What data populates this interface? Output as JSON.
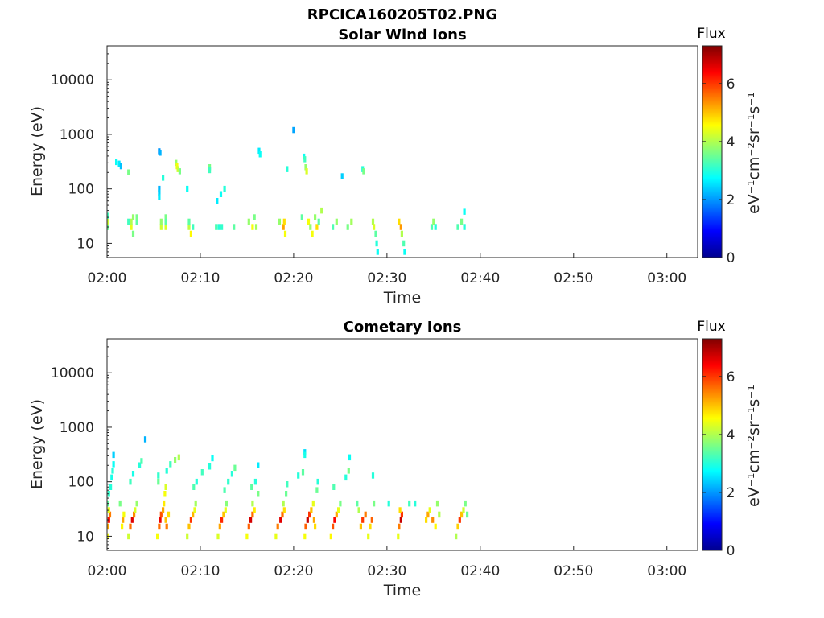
{
  "figure_title": "RPCICA160205T02.PNG",
  "colormap": [
    "#00008f",
    "#0000ff",
    "#0080ff",
    "#00ffff",
    "#80ff80",
    "#ffff00",
    "#ff8000",
    "#ff0000",
    "#800000"
  ],
  "chart_data": [
    {
      "type": "heatmap",
      "title": "Solar Wind Ions",
      "xlabel": "Time",
      "ylabel": "Energy (eV)",
      "x_ticks": [
        "02:00",
        "02:10",
        "02:20",
        "02:30",
        "02:40",
        "02:50",
        "03:00"
      ],
      "x_tick_minutes": [
        0,
        10,
        20,
        30,
        40,
        50,
        60
      ],
      "xlim_minutes": [
        0,
        63.3
      ],
      "y_scale": "log",
      "ylim": [
        5.5,
        42000
      ],
      "y_ticks": [
        "10",
        "100",
        "1000",
        "10000"
      ],
      "y_tick_values": [
        10,
        100,
        1000,
        10000
      ],
      "colorbar": {
        "label": "Flux",
        "units": "eV⁻¹cm⁻²sr⁻¹s⁻¹",
        "range": [
          0,
          7.3
        ],
        "ticks": [
          "0",
          "2",
          "4",
          "6"
        ],
        "tick_values": [
          0,
          2,
          4,
          6
        ]
      },
      "cells": [
        [
          0.1,
          20,
          3.5
        ],
        [
          0.1,
          25,
          4.2
        ],
        [
          0.1,
          32,
          3.2
        ],
        [
          1.0,
          310,
          2.8
        ],
        [
          1.3,
          290,
          2.6
        ],
        [
          1.5,
          260,
          2.3
        ],
        [
          2.3,
          200,
          3.6
        ],
        [
          2.3,
          25,
          3.2
        ],
        [
          2.6,
          20,
          4.4
        ],
        [
          2.6,
          25,
          4.0
        ],
        [
          2.8,
          15,
          3.6
        ],
        [
          2.8,
          30,
          3.8
        ],
        [
          3.2,
          25,
          3.4
        ],
        [
          3.2,
          30,
          3.6
        ],
        [
          5.6,
          490,
          2.0
        ],
        [
          5.7,
          460,
          2.2
        ],
        [
          5.6,
          100,
          2.2
        ],
        [
          5.6,
          85,
          2.4
        ],
        [
          5.6,
          70,
          2.6
        ],
        [
          5.8,
          20,
          4.2
        ],
        [
          5.8,
          25,
          3.8
        ],
        [
          6.0,
          160,
          3.0
        ],
        [
          6.3,
          30,
          3.6
        ],
        [
          6.3,
          20,
          4.3
        ],
        [
          6.3,
          25,
          3.4
        ],
        [
          7.4,
          300,
          3.8
        ],
        [
          7.5,
          260,
          4.5
        ],
        [
          7.6,
          230,
          4.2
        ],
        [
          7.8,
          210,
          3.6
        ],
        [
          8.6,
          100,
          2.8
        ],
        [
          8.8,
          20,
          4.1
        ],
        [
          8.8,
          25,
          3.4
        ],
        [
          9.0,
          15,
          4.6
        ],
        [
          9.2,
          20,
          3.2
        ],
        [
          11.0,
          250,
          3.6
        ],
        [
          11.0,
          220,
          3.2
        ],
        [
          11.8,
          60,
          2.6
        ],
        [
          12.2,
          80,
          2.8
        ],
        [
          12.6,
          100,
          3.0
        ],
        [
          11.7,
          20,
          3.3
        ],
        [
          12.0,
          20,
          3.0
        ],
        [
          12.3,
          20,
          3.1
        ],
        [
          13.6,
          20,
          3.4
        ],
        [
          15.2,
          25,
          3.8
        ],
        [
          15.6,
          20,
          4.5
        ],
        [
          15.8,
          30,
          3.6
        ],
        [
          16.0,
          20,
          3.9
        ],
        [
          16.3,
          500,
          2.6
        ],
        [
          16.4,
          430,
          2.8
        ],
        [
          18.5,
          25,
          3.8
        ],
        [
          18.9,
          20,
          5.2
        ],
        [
          19.0,
          25,
          4.8
        ],
        [
          19.1,
          15,
          4.5
        ],
        [
          19.3,
          230,
          3.0
        ],
        [
          20.0,
          1200,
          2.1
        ],
        [
          20.9,
          30,
          3.4
        ],
        [
          21.1,
          390,
          2.8
        ],
        [
          21.2,
          350,
          3.2
        ],
        [
          21.3,
          250,
          3.8
        ],
        [
          21.4,
          210,
          4.3
        ],
        [
          21.6,
          25,
          4.5
        ],
        [
          21.8,
          20,
          3.8
        ],
        [
          22.0,
          15,
          4.5
        ],
        [
          22.3,
          30,
          3.8
        ],
        [
          22.5,
          20,
          4.8
        ],
        [
          22.7,
          25,
          3.4
        ],
        [
          23.0,
          40,
          4.0
        ],
        [
          24.2,
          20,
          3.3
        ],
        [
          24.6,
          25,
          3.8
        ],
        [
          25.2,
          170,
          2.4
        ],
        [
          25.8,
          20,
          3.6
        ],
        [
          26.2,
          25,
          3.9
        ],
        [
          27.4,
          230,
          3.0
        ],
        [
          27.5,
          210,
          3.6
        ],
        [
          28.5,
          25,
          4.0
        ],
        [
          28.6,
          20,
          4.3
        ],
        [
          28.8,
          15,
          3.4
        ],
        [
          28.9,
          10,
          3.0
        ],
        [
          29.0,
          7,
          2.8
        ],
        [
          31.3,
          25,
          4.8
        ],
        [
          31.5,
          20,
          5.3
        ],
        [
          31.6,
          15,
          4.0
        ],
        [
          31.8,
          10,
          3.3
        ],
        [
          31.9,
          7,
          2.8
        ],
        [
          34.8,
          20,
          3.3
        ],
        [
          35.0,
          25,
          3.8
        ],
        [
          35.2,
          20,
          3.0
        ],
        [
          37.6,
          20,
          3.3
        ],
        [
          38.0,
          25,
          3.6
        ],
        [
          38.3,
          20,
          3.0
        ],
        [
          38.3,
          38,
          2.8
        ]
      ]
    },
    {
      "type": "heatmap",
      "title": "Cometary Ions",
      "xlabel": "Time",
      "ylabel": "Energy (eV)",
      "x_ticks": [
        "02:00",
        "02:10",
        "02:20",
        "02:30",
        "02:40",
        "02:50",
        "03:00"
      ],
      "x_tick_minutes": [
        0,
        10,
        20,
        30,
        40,
        50,
        60
      ],
      "xlim_minutes": [
        0,
        63.3
      ],
      "y_scale": "log",
      "ylim": [
        5.5,
        42000
      ],
      "y_ticks": [
        "10",
        "100",
        "1000",
        "10000"
      ],
      "y_tick_values": [
        10,
        100,
        1000,
        10000
      ],
      "colorbar": {
        "label": "Flux",
        "units": "eV⁻¹cm⁻²sr⁻¹s⁻¹",
        "range": [
          0,
          7.3
        ],
        "ticks": [
          "0",
          "2",
          "4",
          "6"
        ],
        "tick_values": [
          0,
          2,
          4,
          6
        ]
      },
      "cells": [
        [
          0.1,
          10,
          4.5
        ],
        [
          0.1,
          15,
          5.2
        ],
        [
          0.2,
          20,
          6.3
        ],
        [
          0.3,
          25,
          5.5
        ],
        [
          0.2,
          30,
          4.4
        ],
        [
          0.1,
          40,
          3.4
        ],
        [
          0.2,
          60,
          3.1
        ],
        [
          0.4,
          80,
          3.0
        ],
        [
          0.5,
          120,
          2.9
        ],
        [
          0.6,
          160,
          3.0
        ],
        [
          0.7,
          210,
          2.8
        ],
        [
          0.7,
          310,
          2.4
        ],
        [
          1.4,
          40,
          3.6
        ],
        [
          1.6,
          15,
          4.6
        ],
        [
          1.7,
          20,
          5.2
        ],
        [
          1.8,
          25,
          4.5
        ],
        [
          2.3,
          10,
          4.2
        ],
        [
          2.5,
          15,
          5.6
        ],
        [
          2.7,
          20,
          6.6
        ],
        [
          2.9,
          25,
          5.4
        ],
        [
          3.0,
          30,
          4.3
        ],
        [
          3.2,
          40,
          3.8
        ],
        [
          2.5,
          100,
          3.2
        ],
        [
          2.8,
          140,
          2.9
        ],
        [
          3.5,
          200,
          3.0
        ],
        [
          3.7,
          240,
          3.3
        ],
        [
          4.1,
          600,
          2.2
        ],
        [
          5.4,
          10,
          4.5
        ],
        [
          5.6,
          15,
          5.6
        ],
        [
          5.7,
          20,
          6.5
        ],
        [
          5.8,
          25,
          5.8
        ],
        [
          6.0,
          30,
          5.2
        ],
        [
          6.1,
          40,
          4.7
        ],
        [
          6.2,
          60,
          4.5
        ],
        [
          6.3,
          80,
          4.3
        ],
        [
          5.5,
          100,
          3.5
        ],
        [
          5.5,
          130,
          3.1
        ],
        [
          6.4,
          160,
          3.0
        ],
        [
          6.8,
          210,
          3.2
        ],
        [
          7.3,
          250,
          3.8
        ],
        [
          7.7,
          280,
          4.0
        ],
        [
          6.3,
          20,
          5.0
        ],
        [
          6.4,
          15,
          5.5
        ],
        [
          6.6,
          25,
          4.8
        ],
        [
          8.6,
          10,
          4.2
        ],
        [
          8.8,
          15,
          5.0
        ],
        [
          9.0,
          20,
          6.0
        ],
        [
          9.2,
          25,
          5.1
        ],
        [
          9.4,
          30,
          4.4
        ],
        [
          9.5,
          40,
          3.9
        ],
        [
          9.3,
          80,
          3.3
        ],
        [
          9.6,
          100,
          3.0
        ],
        [
          10.2,
          150,
          3.2
        ],
        [
          11.0,
          190,
          3.0
        ],
        [
          11.3,
          270,
          2.8
        ],
        [
          11.9,
          10,
          4.3
        ],
        [
          12.1,
          15,
          5.2
        ],
        [
          12.3,
          20,
          6.1
        ],
        [
          12.5,
          25,
          5.0
        ],
        [
          12.7,
          30,
          4.4
        ],
        [
          12.8,
          40,
          3.7
        ],
        [
          12.6,
          70,
          3.3
        ],
        [
          13.0,
          100,
          3.1
        ],
        [
          13.4,
          140,
          3.0
        ],
        [
          13.7,
          180,
          3.5
        ],
        [
          15.0,
          10,
          4.5
        ],
        [
          15.2,
          15,
          5.7
        ],
        [
          15.4,
          20,
          6.7
        ],
        [
          15.6,
          25,
          5.6
        ],
        [
          15.8,
          30,
          4.7
        ],
        [
          15.6,
          40,
          4.0
        ],
        [
          15.5,
          80,
          3.4
        ],
        [
          15.9,
          100,
          3.0
        ],
        [
          16.2,
          60,
          3.6
        ],
        [
          16.2,
          200,
          2.6
        ],
        [
          18.1,
          10,
          4.4
        ],
        [
          18.3,
          15,
          5.5
        ],
        [
          18.6,
          20,
          6.6
        ],
        [
          18.8,
          25,
          5.6
        ],
        [
          19.0,
          30,
          4.8
        ],
        [
          18.9,
          40,
          4.0
        ],
        [
          19.2,
          60,
          3.5
        ],
        [
          19.3,
          90,
          3.2
        ],
        [
          20.5,
          130,
          3.0
        ],
        [
          21.0,
          150,
          3.4
        ],
        [
          21.2,
          10,
          4.5
        ],
        [
          21.3,
          15,
          5.7
        ],
        [
          21.5,
          20,
          6.8
        ],
        [
          21.7,
          25,
          6.0
        ],
        [
          21.9,
          30,
          5.0
        ],
        [
          22.1,
          40,
          4.4
        ],
        [
          21.2,
          350,
          2.5
        ],
        [
          21.2,
          310,
          2.9
        ],
        [
          22.2,
          20,
          5.2
        ],
        [
          22.3,
          15,
          4.8
        ],
        [
          22.5,
          70,
          3.5
        ],
        [
          22.6,
          100,
          3.0
        ],
        [
          24.0,
          10,
          4.6
        ],
        [
          24.2,
          15,
          5.8
        ],
        [
          24.4,
          20,
          6.4
        ],
        [
          24.6,
          25,
          5.2
        ],
        [
          24.8,
          30,
          4.4
        ],
        [
          25.0,
          40,
          3.6
        ],
        [
          24.3,
          80,
          3.3
        ],
        [
          25.6,
          120,
          3.0
        ],
        [
          25.9,
          160,
          3.6
        ],
        [
          26.0,
          280,
          2.8
        ],
        [
          26.8,
          40,
          3.4
        ],
        [
          27.0,
          30,
          4.0
        ],
        [
          27.2,
          15,
          5.0
        ],
        [
          27.4,
          20,
          6.0
        ],
        [
          27.7,
          25,
          5.5
        ],
        [
          28.0,
          10,
          4.4
        ],
        [
          28.2,
          15,
          4.8
        ],
        [
          28.4,
          20,
          5.7
        ],
        [
          28.6,
          40,
          3.6
        ],
        [
          28.5,
          130,
          3.0
        ],
        [
          30.2,
          40,
          3.0
        ],
        [
          31.2,
          10,
          4.4
        ],
        [
          31.3,
          15,
          5.5
        ],
        [
          31.5,
          20,
          6.8
        ],
        [
          31.6,
          25,
          6.0
        ],
        [
          31.4,
          30,
          4.8
        ],
        [
          32.4,
          40,
          3.2
        ],
        [
          33.0,
          40,
          3.0
        ],
        [
          34.2,
          20,
          4.8
        ],
        [
          34.4,
          25,
          5.2
        ],
        [
          34.6,
          30,
          4.4
        ],
        [
          34.9,
          20,
          5.4
        ],
        [
          35.2,
          15,
          4.6
        ],
        [
          35.4,
          40,
          3.8
        ],
        [
          35.6,
          25,
          4.0
        ],
        [
          37.4,
          10,
          4.0
        ],
        [
          37.6,
          15,
          4.9
        ],
        [
          37.8,
          20,
          6.0
        ],
        [
          38.0,
          25,
          5.0
        ],
        [
          38.2,
          30,
          4.2
        ],
        [
          38.4,
          40,
          3.6
        ],
        [
          38.6,
          25,
          3.5
        ]
      ]
    }
  ]
}
